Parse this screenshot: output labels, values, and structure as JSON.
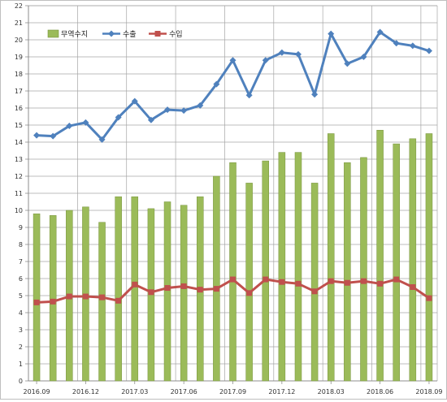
{
  "chart_data": {
    "type": "bar",
    "ylim": [
      0,
      22
    ],
    "yticks": [
      0,
      1,
      2,
      3,
      4,
      5,
      6,
      7,
      8,
      9,
      10,
      11,
      12,
      13,
      14,
      15,
      16,
      17,
      18,
      19,
      20,
      21,
      22
    ],
    "x_tick_labels": [
      "2016.09",
      "2016.12",
      "2017.03",
      "2017.06",
      "2017.09",
      "2017.12",
      "2018.03",
      "2018.06",
      "2018.09"
    ],
    "grid": true,
    "legend_position": "top-left",
    "colors": {
      "bar": "#9bbb59",
      "bar_edge": "#77933c",
      "export": "#4f81bd",
      "import": "#c0504d"
    },
    "series": [
      {
        "name": "무역수지",
        "type": "bar",
        "values": [
          9.8,
          9.7,
          10.0,
          10.2,
          9.3,
          10.8,
          10.8,
          10.1,
          10.5,
          10.3,
          10.8,
          12.0,
          12.8,
          11.6,
          12.9,
          13.4,
          13.4,
          11.6,
          14.5,
          12.8,
          13.1,
          14.7,
          13.9,
          14.2,
          14.5
        ]
      },
      {
        "name": "수출",
        "type": "line",
        "marker": "diamond",
        "values": [
          14.4,
          14.35,
          14.95,
          15.15,
          14.15,
          15.45,
          16.4,
          15.3,
          15.9,
          15.85,
          16.15,
          17.4,
          18.8,
          16.75,
          18.8,
          19.25,
          19.15,
          16.8,
          20.35,
          18.6,
          19.0,
          20.45,
          19.8,
          19.65,
          19.35
        ]
      },
      {
        "name": "수입",
        "type": "line",
        "marker": "square",
        "values": [
          4.6,
          4.65,
          4.95,
          4.95,
          4.9,
          4.7,
          5.65,
          5.2,
          5.45,
          5.55,
          5.35,
          5.4,
          5.95,
          5.15,
          5.95,
          5.8,
          5.7,
          5.25,
          5.85,
          5.75,
          5.85,
          5.7,
          5.95,
          5.5,
          4.85
        ]
      }
    ]
  }
}
